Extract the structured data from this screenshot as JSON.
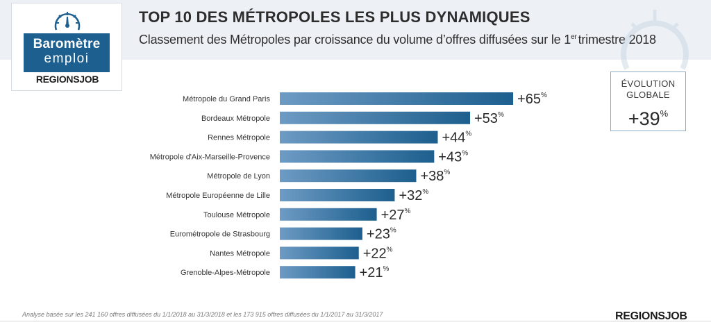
{
  "header": {
    "title": "TOP 10 DES MÉTROPOLES LES PLUS DYNAMIQUES",
    "subtitle_main": "Classement des Métropoles par croissance du volume d’offres diffusées sur le 1",
    "subtitle_sup": "er",
    "subtitle_end": "trimestre 2018"
  },
  "logo": {
    "line1": "Baromètre",
    "line2": "emploi",
    "brand": "REGIONSJOB"
  },
  "evolution": {
    "label_line1": "ÉVOLUTION",
    "label_line2": "GLOBALE",
    "value": "+39",
    "unit": "%"
  },
  "chart_data": {
    "type": "bar",
    "orientation": "horizontal",
    "categories": [
      "Métropole du Grand Paris",
      "Bordeaux Métropole",
      "Rennes Métropole",
      "Métropole d'Aix-Marseille-Provence",
      "Métropole de Lyon",
      "Métropole Européenne de Lille",
      "Toulouse Métropole",
      "Eurométropole de Strasbourg",
      "Nantes Métropole",
      "Grenoble-Alpes-Métropole"
    ],
    "values": [
      65,
      53,
      44,
      43,
      38,
      32,
      27,
      23,
      22,
      21
    ],
    "value_prefix": "+",
    "value_unit": "%",
    "bar_color_light": "#6d9bc4",
    "bar_color_dark": "#1d5f8e"
  },
  "footer": {
    "note": "Analyse basée sur les 241 160 offres diffusées du 1/1/2018 au 31/3/2018 et les 173 915 offres diffusées du 1/1/2017 au 31/3/2017",
    "brand": "REGIONSJOB"
  },
  "colors": {
    "accent": "#1d5f8e",
    "header_band": "#edf1f6"
  }
}
